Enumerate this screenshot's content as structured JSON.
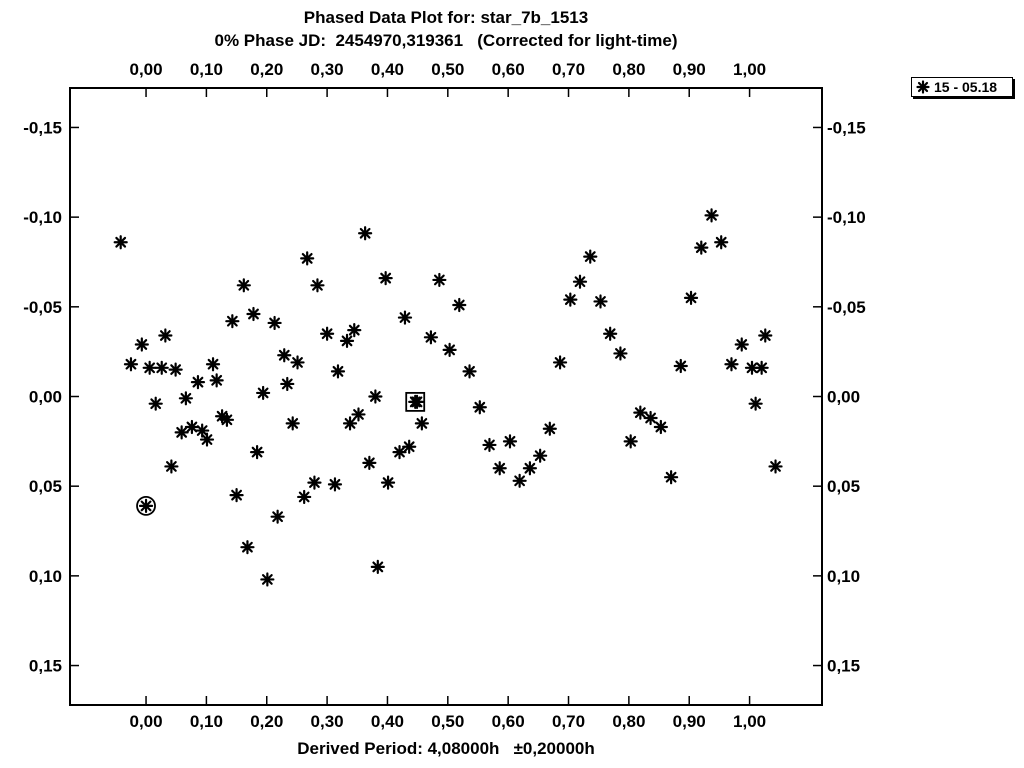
{
  "chart_data": {
    "type": "scatter",
    "title": "Phased Data Plot for: star_7b_1513",
    "subtitle": "0% Phase JD:  2454970,319361   (Corrected for light-time)",
    "xlabel": "Derived Period: 4,08000h   ±0,20000h",
    "ylabel": "",
    "xlim": [
      -0.126,
      1.12
    ],
    "ylim": [
      -0.172,
      0.172
    ],
    "y_inverted": true,
    "x_ticks": [
      "0,00",
      "0,10",
      "0,20",
      "0,30",
      "0,40",
      "0,50",
      "0,60",
      "0,70",
      "0,80",
      "0,90",
      "1,00"
    ],
    "x_tick_values": [
      0.0,
      0.1,
      0.2,
      0.3,
      0.4,
      0.5,
      0.6,
      0.7,
      0.8,
      0.9,
      1.0
    ],
    "y_ticks": [
      "-0,15",
      "-0,10",
      "-0,05",
      "0,00",
      "0,05",
      "0,10",
      "0,15"
    ],
    "y_tick_values": [
      -0.15,
      -0.1,
      -0.05,
      0.0,
      0.05,
      0.1,
      0.15
    ],
    "grid": false,
    "legend_position": "top-right outside",
    "series": [
      {
        "name": "15 - 05.18",
        "marker": "asterisk",
        "color": "#000000",
        "points": [
          [
            -0.042,
            -0.086
          ],
          [
            -0.025,
            -0.018
          ],
          [
            -0.007,
            -0.029
          ],
          [
            0.006,
            -0.016
          ],
          [
            0.016,
            0.004
          ],
          [
            0.026,
            -0.016
          ],
          [
            0.032,
            -0.034
          ],
          [
            0.042,
            0.039
          ],
          [
            0.049,
            -0.015
          ],
          [
            0.059,
            0.02
          ],
          [
            0.066,
            0.001
          ],
          [
            0.076,
            0.017
          ],
          [
            0.086,
            -0.008
          ],
          [
            0.093,
            0.019
          ],
          [
            0.101,
            0.024
          ],
          [
            0.111,
            -0.018
          ],
          [
            0.117,
            -0.009
          ],
          [
            0.126,
            0.011
          ],
          [
            0.134,
            0.013
          ],
          [
            0.143,
            -0.042
          ],
          [
            0.15,
            0.055
          ],
          [
            0.162,
            -0.062
          ],
          [
            0.168,
            0.084
          ],
          [
            0.178,
            -0.046
          ],
          [
            0.184,
            0.031
          ],
          [
            0.194,
            -0.002
          ],
          [
            0.201,
            0.102
          ],
          [
            0.213,
            -0.041
          ],
          [
            0.218,
            0.067
          ],
          [
            0.229,
            -0.023
          ],
          [
            0.234,
            -0.007
          ],
          [
            0.243,
            0.015
          ],
          [
            0.251,
            -0.019
          ],
          [
            0.262,
            0.056
          ],
          [
            0.267,
            -0.077
          ],
          [
            0.279,
            0.048
          ],
          [
            0.284,
            -0.062
          ],
          [
            0.3,
            -0.035
          ],
          [
            0.313,
            0.049
          ],
          [
            0.318,
            -0.014
          ],
          [
            0.333,
            -0.031
          ],
          [
            0.338,
            0.015
          ],
          [
            0.345,
            -0.037
          ],
          [
            0.352,
            0.01
          ],
          [
            0.363,
            -0.091
          ],
          [
            0.37,
            0.037
          ],
          [
            0.38,
            0.0
          ],
          [
            0.384,
            0.095
          ],
          [
            0.397,
            -0.066
          ],
          [
            0.401,
            0.048
          ],
          [
            0.42,
            0.031
          ],
          [
            0.429,
            -0.044
          ],
          [
            0.436,
            0.028
          ],
          [
            0.449,
            0.003
          ],
          [
            0.457,
            0.015
          ],
          [
            0.472,
            -0.033
          ],
          [
            0.486,
            -0.065
          ],
          [
            0.503,
            -0.026
          ],
          [
            0.519,
            -0.051
          ],
          [
            0.536,
            -0.014
          ],
          [
            0.553,
            0.006
          ],
          [
            0.569,
            0.027
          ],
          [
            0.586,
            0.04
          ],
          [
            0.603,
            0.025
          ],
          [
            0.619,
            0.047
          ],
          [
            0.636,
            0.04
          ],
          [
            0.653,
            0.033
          ],
          [
            0.669,
            0.018
          ],
          [
            0.686,
            -0.019
          ],
          [
            0.703,
            -0.054
          ],
          [
            0.719,
            -0.064
          ],
          [
            0.736,
            -0.078
          ],
          [
            0.753,
            -0.053
          ],
          [
            0.769,
            -0.035
          ],
          [
            0.786,
            -0.024
          ],
          [
            0.803,
            0.025
          ],
          [
            0.819,
            0.009
          ],
          [
            0.836,
            0.012
          ],
          [
            0.853,
            0.017
          ],
          [
            0.87,
            0.045
          ],
          [
            0.886,
            -0.017
          ],
          [
            0.903,
            -0.055
          ],
          [
            0.92,
            -0.083
          ],
          [
            0.937,
            -0.101
          ],
          [
            0.953,
            -0.086
          ],
          [
            0.97,
            -0.018
          ],
          [
            0.987,
            -0.029
          ],
          [
            1.004,
            -0.016
          ],
          [
            1.01,
            0.004
          ],
          [
            1.02,
            -0.016
          ],
          [
            1.026,
            -0.034
          ],
          [
            1.043,
            0.039
          ]
        ]
      }
    ],
    "highlighted": [
      {
        "x": 0.0,
        "y": 0.061,
        "marker": "circled-asterisk"
      },
      {
        "x": 0.446,
        "y": 0.003,
        "marker": "boxed-asterisk"
      }
    ]
  },
  "legend": {
    "label": "15 - 05.18"
  }
}
